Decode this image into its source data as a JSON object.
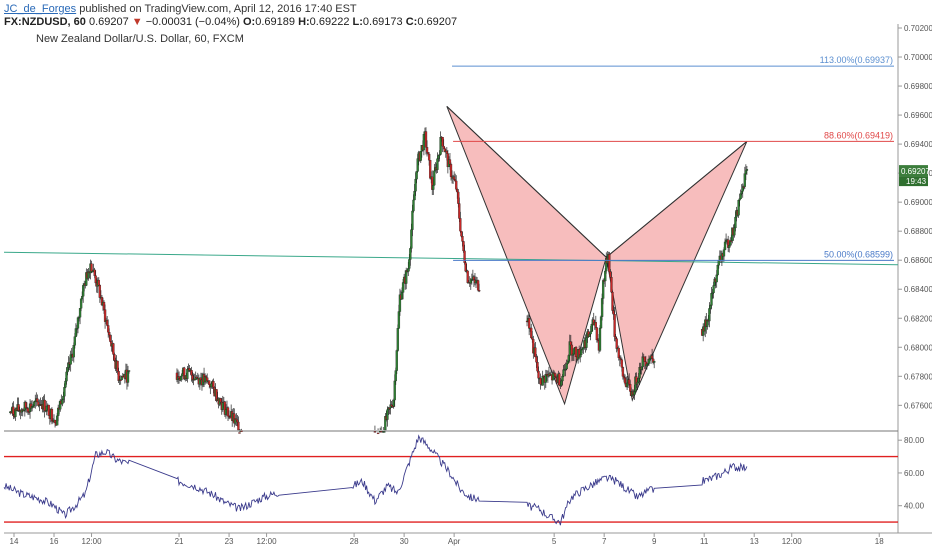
{
  "header": {
    "author": "JC_de_Forges",
    "published": "published on TradingView.com, April 12, 2016 17:40 EST",
    "symbol": "FX:NZDUSD, 60",
    "last": "0.69207",
    "change": "−0.00031 (−0.04%)",
    "open_label": "O:",
    "open": "0.69189",
    "high_label": "H:",
    "high": "0.69222",
    "low_label": "L:",
    "low": "0.69173",
    "close_label": "C:",
    "close": "0.69207",
    "instrument": "New Zealand Dollar/U.S. Dollar, 60, FXCM"
  },
  "colors": {
    "up": "#2e7d32",
    "down": "#c62828",
    "pattern_fill": "#f4a7a7",
    "pattern_line": "#333333",
    "fib_113": "#5b8fd0",
    "fib_886": "#e04848",
    "fib_50": "#4a7ac8",
    "trendline": "#3aa88a",
    "rsi_line": "#3b3b8c",
    "rsi_band": "#e02020"
  },
  "chart_data": [
    {
      "type": "candlestick",
      "title": "New Zealand Dollar/U.S. Dollar, 60, FXCM",
      "ylim": [
        0.6743,
        0.702
      ],
      "y_ticks": [
        "0.70200",
        "0.70000",
        "0.69800",
        "0.69600",
        "0.69400",
        "0.69200",
        "0.69000",
        "0.68800",
        "0.68600",
        "0.68400",
        "0.68200",
        "0.68000",
        "0.67800",
        "0.67600"
      ],
      "x_ticks": [
        "14",
        "16",
        "12:00",
        "21",
        "23",
        "12:00",
        "28",
        "30",
        "Apr",
        "5",
        "7",
        "9",
        "11",
        "13",
        "12:00",
        "18"
      ],
      "last_price_label": "0.69207",
      "countdown_label": "19:43",
      "ohlc_anchors": [
        [
          "2016-03-14 06:00",
          0.6755
        ],
        [
          "2016-03-15 12:00",
          0.6762
        ],
        [
          "2016-03-16 02:00",
          0.675
        ],
        [
          "2016-03-16 19:00",
          0.68
        ],
        [
          "2016-03-17 03:00",
          0.6838
        ],
        [
          "2016-03-17 11:00",
          0.6858
        ],
        [
          "2016-03-17 19:00",
          0.684
        ],
        [
          "2016-03-18 06:00",
          0.6805
        ],
        [
          "2016-03-18 14:00",
          0.678
        ],
        [
          "2016-03-21 10:00",
          0.6782
        ],
        [
          "2016-03-22 06:00",
          0.6775
        ],
        [
          "2016-03-22 18:00",
          0.676
        ],
        [
          "2016-03-23 06:00",
          0.6748
        ],
        [
          "2016-03-24 12:00",
          0.6722
        ],
        [
          "2016-03-26 12:00",
          0.672
        ],
        [
          "2016-03-29 02:00",
          0.674
        ],
        [
          "2016-03-29 14:00",
          0.6765
        ],
        [
          "2016-03-29 20:00",
          0.6835
        ],
        [
          "2016-03-30 04:00",
          0.6855
        ],
        [
          "2016-03-30 12:00",
          0.6925
        ],
        [
          "2016-03-30 20:00",
          0.6945
        ],
        [
          "2016-03-31 03:00",
          0.691
        ],
        [
          "2016-03-31 12:00",
          0.6945
        ],
        [
          "2016-03-31 19:00",
          0.6925
        ],
        [
          "2016-04-01 02:00",
          0.691
        ],
        [
          "2016-04-01 08:00",
          0.687
        ],
        [
          "2016-04-01 13:00",
          0.6848
        ],
        [
          "2016-04-03 23:00",
          0.682
        ],
        [
          "2016-04-04 10:00",
          0.6775
        ],
        [
          "2016-04-04 16:00",
          0.678
        ],
        [
          "2016-04-05 07:00",
          0.6778
        ],
        [
          "2016-04-05 15:00",
          0.68
        ],
        [
          "2016-04-05 23:00",
          0.6795
        ],
        [
          "2016-04-06 09:00",
          0.6808
        ],
        [
          "2016-04-06 15:00",
          0.6818
        ],
        [
          "2016-04-06 19:00",
          0.68
        ],
        [
          "2016-04-06 23:00",
          0.6845
        ],
        [
          "2016-04-07 04:00",
          0.6865
        ],
        [
          "2016-04-07 10:00",
          0.681
        ],
        [
          "2016-04-07 18:00",
          0.678
        ],
        [
          "2016-04-08 03:00",
          0.6768
        ],
        [
          "2016-04-08 12:00",
          0.679
        ],
        [
          "2016-04-10 23:00",
          0.681
        ],
        [
          "2016-04-11 04:00",
          0.6822
        ],
        [
          "2016-04-11 10:00",
          0.6845
        ],
        [
          "2016-04-11 15:00",
          0.686
        ],
        [
          "2016-04-11 21:00",
          0.687
        ],
        [
          "2016-04-12 04:00",
          0.688
        ],
        [
          "2016-04-12 10:00",
          0.6902
        ],
        [
          "2016-04-12 15:00",
          0.6918
        ],
        [
          "2016-04-12 17:00",
          0.69207
        ]
      ],
      "pattern_points": [
        [
          "2016-03-31 17:00",
          0.6966
        ],
        [
          "2016-04-05 10:00",
          0.6761
        ],
        [
          "2016-04-07 02:00",
          0.6862
        ],
        [
          "2016-04-08 03:00",
          0.67635
        ],
        [
          "2016-04-12 17:00",
          0.69419
        ]
      ],
      "horizontal_lines": [
        {
          "label": "113.00%(0.69937)",
          "value": 0.69937,
          "from": "2016-03-31 22:00"
        },
        {
          "label": "88.60%(0.69419)",
          "value": 0.69419,
          "from": "2016-03-31 23:00"
        },
        {
          "label": "50.00%(0.68599)",
          "value": 0.68599,
          "from": "2016-03-31 23:00"
        }
      ],
      "trendline": [
        [
          "2016-03-14 00:00",
          0.68655
        ],
        [
          "2016-04-18 18:00",
          0.68569
        ]
      ]
    },
    {
      "type": "line",
      "ylim": [
        27,
        85
      ],
      "y_ticks": [
        "80.00",
        "60.00",
        "40.00"
      ],
      "bands": [
        70,
        30
      ],
      "series": [
        {
          "name": "",
          "x": [
            "2016-03-14 00:00",
            "2016-03-14 18:00",
            "2016-03-15 12:00",
            "2016-03-16 00:00",
            "2016-03-16 10:00",
            "2016-03-16 20:00",
            "2016-03-17 06:00",
            "2016-03-17 16:00",
            "2016-03-18 02:00",
            "2016-03-18 12:00",
            "2016-03-21 00:00",
            "2016-03-21 16:00",
            "2016-03-22 08:00",
            "2016-03-22 20:00",
            "2016-03-23 10:00",
            "2016-03-24 08:00",
            "2016-03-25 08:00",
            "2016-03-26 12:00",
            "2016-03-27 16:00",
            "2016-03-28 08:00",
            "2016-03-28 20:00",
            "2016-03-29 08:00",
            "2016-03-29 18:00",
            "2016-03-30 04:00",
            "2016-03-30 14:00",
            "2016-03-31 00:00",
            "2016-03-31 10:00",
            "2016-03-31 20:00",
            "2016-04-01 06:00",
            "2016-04-01 16:00",
            "2016-04-03 22:00",
            "2016-04-04 10:00",
            "2016-04-04 20:00",
            "2016-04-05 06:00",
            "2016-04-05 16:00",
            "2016-04-06 04:00",
            "2016-04-06 16:00",
            "2016-04-07 02:00",
            "2016-04-07 12:00",
            "2016-04-07 22:00",
            "2016-04-08 08:00",
            "2016-04-08 18:00",
            "2016-04-10 22:00",
            "2016-04-11 08:00",
            "2016-04-11 18:00",
            "2016-04-12 04:00",
            "2016-04-12 12:00",
            "2016-04-12 17:00"
          ],
          "values": [
            52,
            47,
            44,
            40,
            34,
            40,
            47,
            71,
            73,
            68,
            55,
            52,
            47,
            42,
            38,
            45,
            50,
            47,
            50,
            55,
            43,
            52,
            48,
            65,
            82,
            76,
            68,
            60,
            50,
            45,
            40,
            38,
            33,
            30,
            45,
            50,
            54,
            57,
            55,
            50,
            45,
            49,
            55,
            57,
            60,
            64,
            63,
            64
          ]
        }
      ]
    }
  ]
}
